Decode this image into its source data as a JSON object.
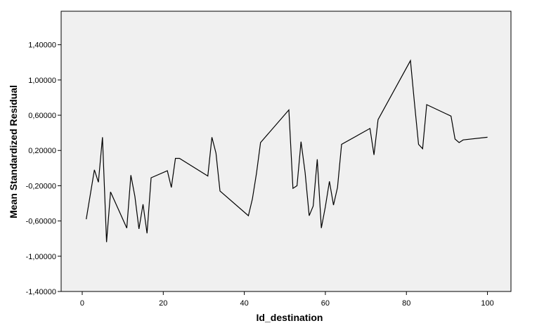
{
  "chart_data": {
    "type": "line",
    "title": "",
    "xlabel": "Id_destination",
    "ylabel": "Mean Standardized Residual",
    "xlim": [
      -5.2,
      105.8
    ],
    "ylim": [
      -1.4,
      1.78
    ],
    "x_ticks": [
      0,
      20,
      40,
      60,
      80,
      100
    ],
    "x_tick_labels": [
      "0",
      "20",
      "40",
      "60",
      "80",
      "100"
    ],
    "y_ticks": [
      -1.4,
      -1.0,
      -0.6,
      -0.2,
      0.2,
      0.6,
      1.0,
      1.4
    ],
    "y_tick_labels": [
      "-1,40000",
      "-1,00000",
      "-0,60000",
      "-0,20000",
      "0,20000",
      "0,60000",
      "1,00000",
      "1,40000"
    ],
    "grid": false,
    "plot_background": "#f0f0f0",
    "line_color": "#000000",
    "series": [
      {
        "x": [
          1,
          3,
          4,
          5,
          6,
          7,
          11,
          12,
          13,
          14,
          15,
          16,
          17,
          21,
          22,
          23,
          24,
          31,
          32,
          33,
          34,
          41,
          42,
          43,
          44,
          51,
          52,
          53,
          54,
          55,
          56,
          57,
          58,
          59,
          60,
          61,
          62,
          63,
          64,
          71,
          72,
          73,
          81,
          82,
          83,
          84,
          85,
          91,
          92,
          93,
          94,
          100
        ],
        "y": [
          -0.58,
          -0.02,
          -0.16,
          0.35,
          -0.84,
          -0.27,
          -0.68,
          -0.08,
          -0.32,
          -0.69,
          -0.41,
          -0.74,
          -0.11,
          -0.03,
          -0.22,
          0.11,
          0.11,
          -0.09,
          0.35,
          0.17,
          -0.26,
          -0.54,
          -0.35,
          -0.06,
          0.29,
          0.66,
          -0.23,
          -0.2,
          0.3,
          -0.05,
          -0.54,
          -0.43,
          0.1,
          -0.68,
          -0.44,
          -0.15,
          -0.42,
          -0.22,
          0.27,
          0.45,
          0.15,
          0.55,
          1.22,
          0.73,
          0.27,
          0.22,
          0.72,
          0.59,
          0.33,
          0.29,
          0.32,
          0.35
        ]
      }
    ]
  }
}
